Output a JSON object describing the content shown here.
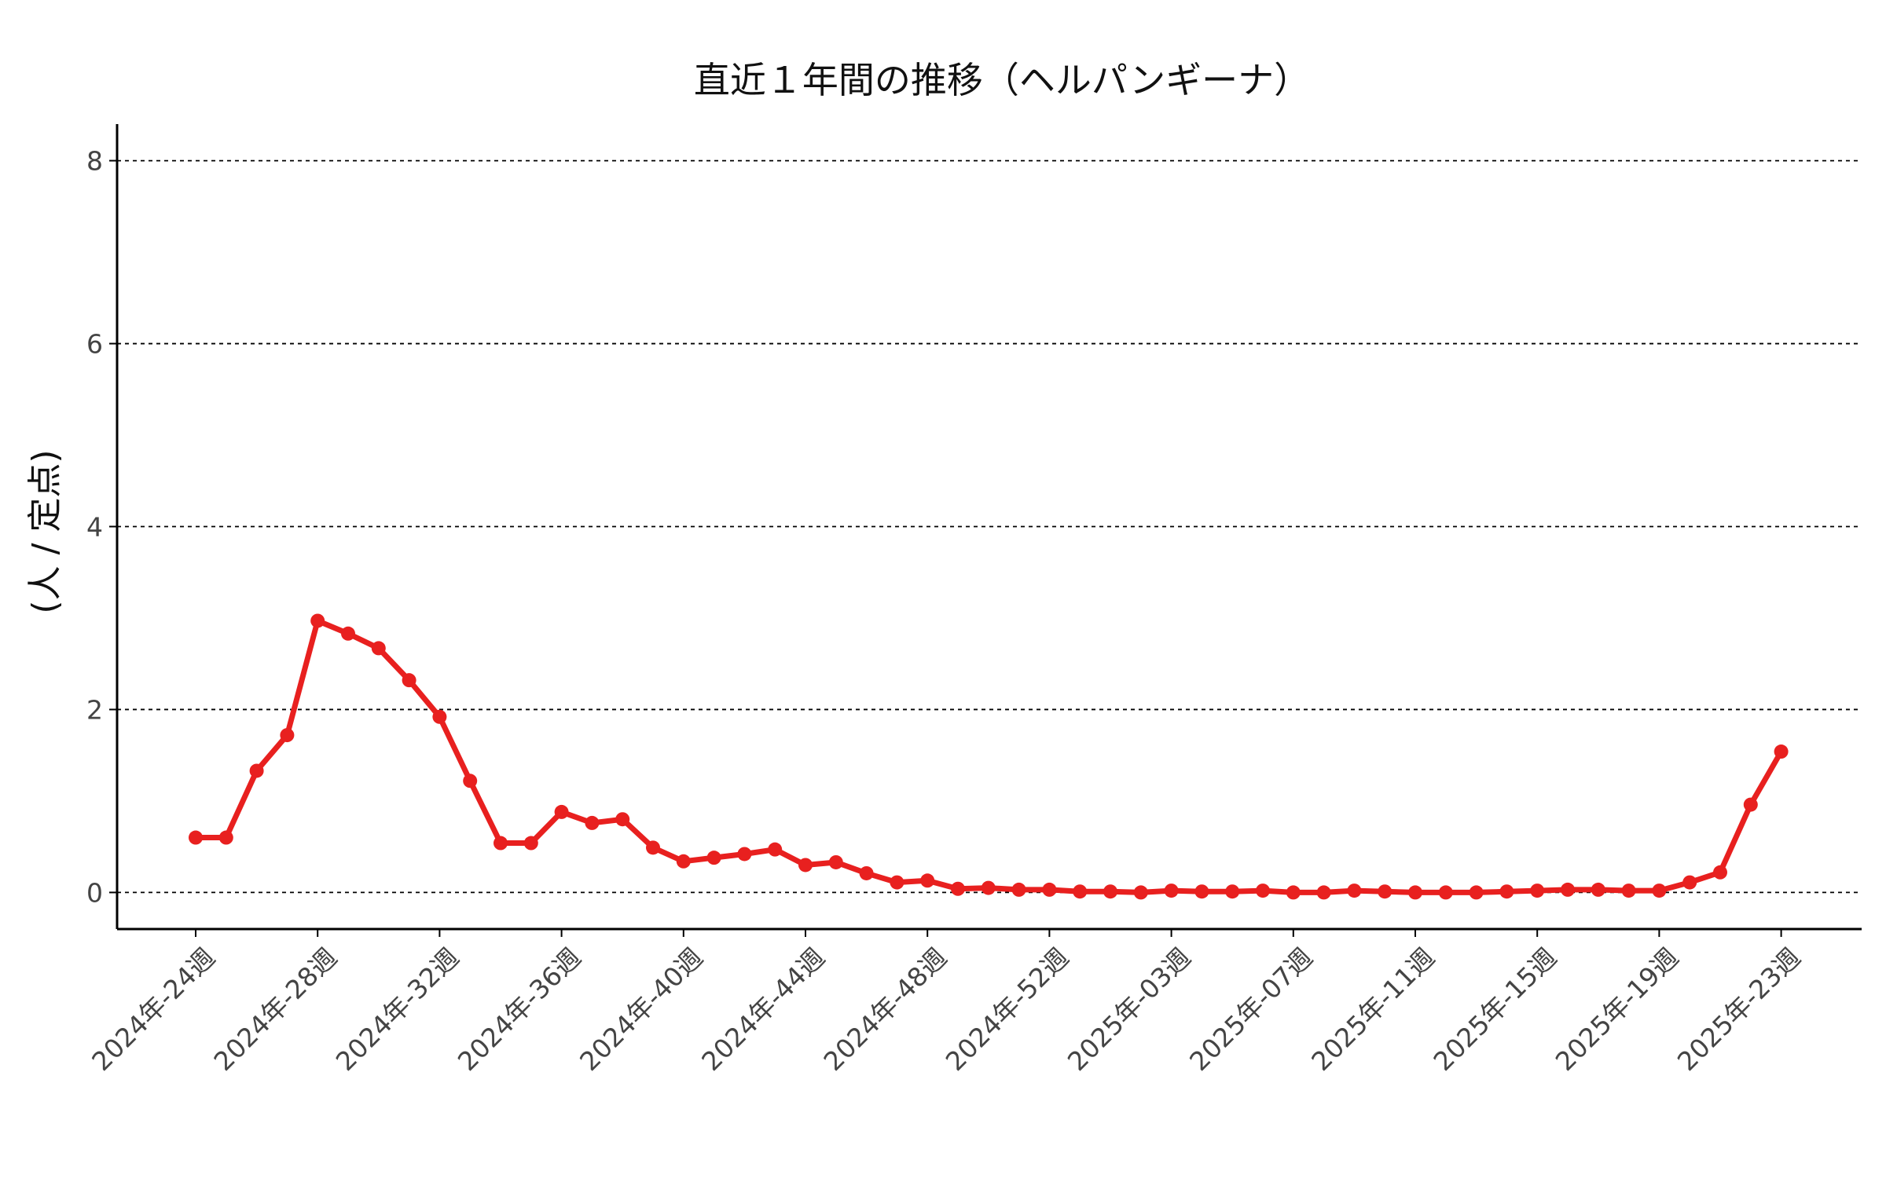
{
  "chart_data": {
    "type": "line",
    "title": "直近１年間の推移（ヘルパンギーナ）",
    "y_label": "(人 / 定点)",
    "categories": [
      "2024年-24週",
      null,
      null,
      null,
      "2024年-28週",
      null,
      null,
      null,
      "2024年-32週",
      null,
      null,
      null,
      "2024年-36週",
      null,
      null,
      null,
      "2024年-40週",
      null,
      null,
      null,
      "2024年-44週",
      null,
      null,
      null,
      "2024年-48週",
      null,
      null,
      null,
      "2024年-52週",
      null,
      null,
      null,
      "2025年-03週",
      null,
      null,
      null,
      "2025年-07週",
      null,
      null,
      null,
      "2025年-11週",
      null,
      null,
      null,
      "2025年-15週",
      null,
      null,
      null,
      "2025年-19週",
      null,
      null,
      null,
      "2025年-23週"
    ],
    "series": [
      {
        "name": "ヘルパンギーナ",
        "color": "#e8201f",
        "values": [
          0.6,
          0.6,
          1.33,
          1.72,
          2.97,
          2.83,
          2.67,
          2.32,
          1.92,
          1.22,
          0.54,
          0.54,
          0.88,
          0.76,
          0.8,
          0.49,
          0.34,
          0.38,
          0.42,
          0.47,
          0.3,
          0.33,
          0.21,
          0.11,
          0.13,
          0.04,
          0.05,
          0.03,
          0.03,
          0.01,
          0.01,
          0.0,
          0.02,
          0.01,
          0.01,
          0.02,
          0.0,
          0.0,
          0.02,
          0.01,
          0.0,
          0.0,
          0.0,
          0.01,
          0.02,
          0.03,
          0.03,
          0.02,
          0.02,
          0.11,
          0.22,
          0.96,
          1.54
        ]
      }
    ],
    "ylim": [
      -0.4,
      8.4
    ],
    "yticks": [
      0,
      2,
      4,
      6,
      8
    ],
    "grid": true
  }
}
